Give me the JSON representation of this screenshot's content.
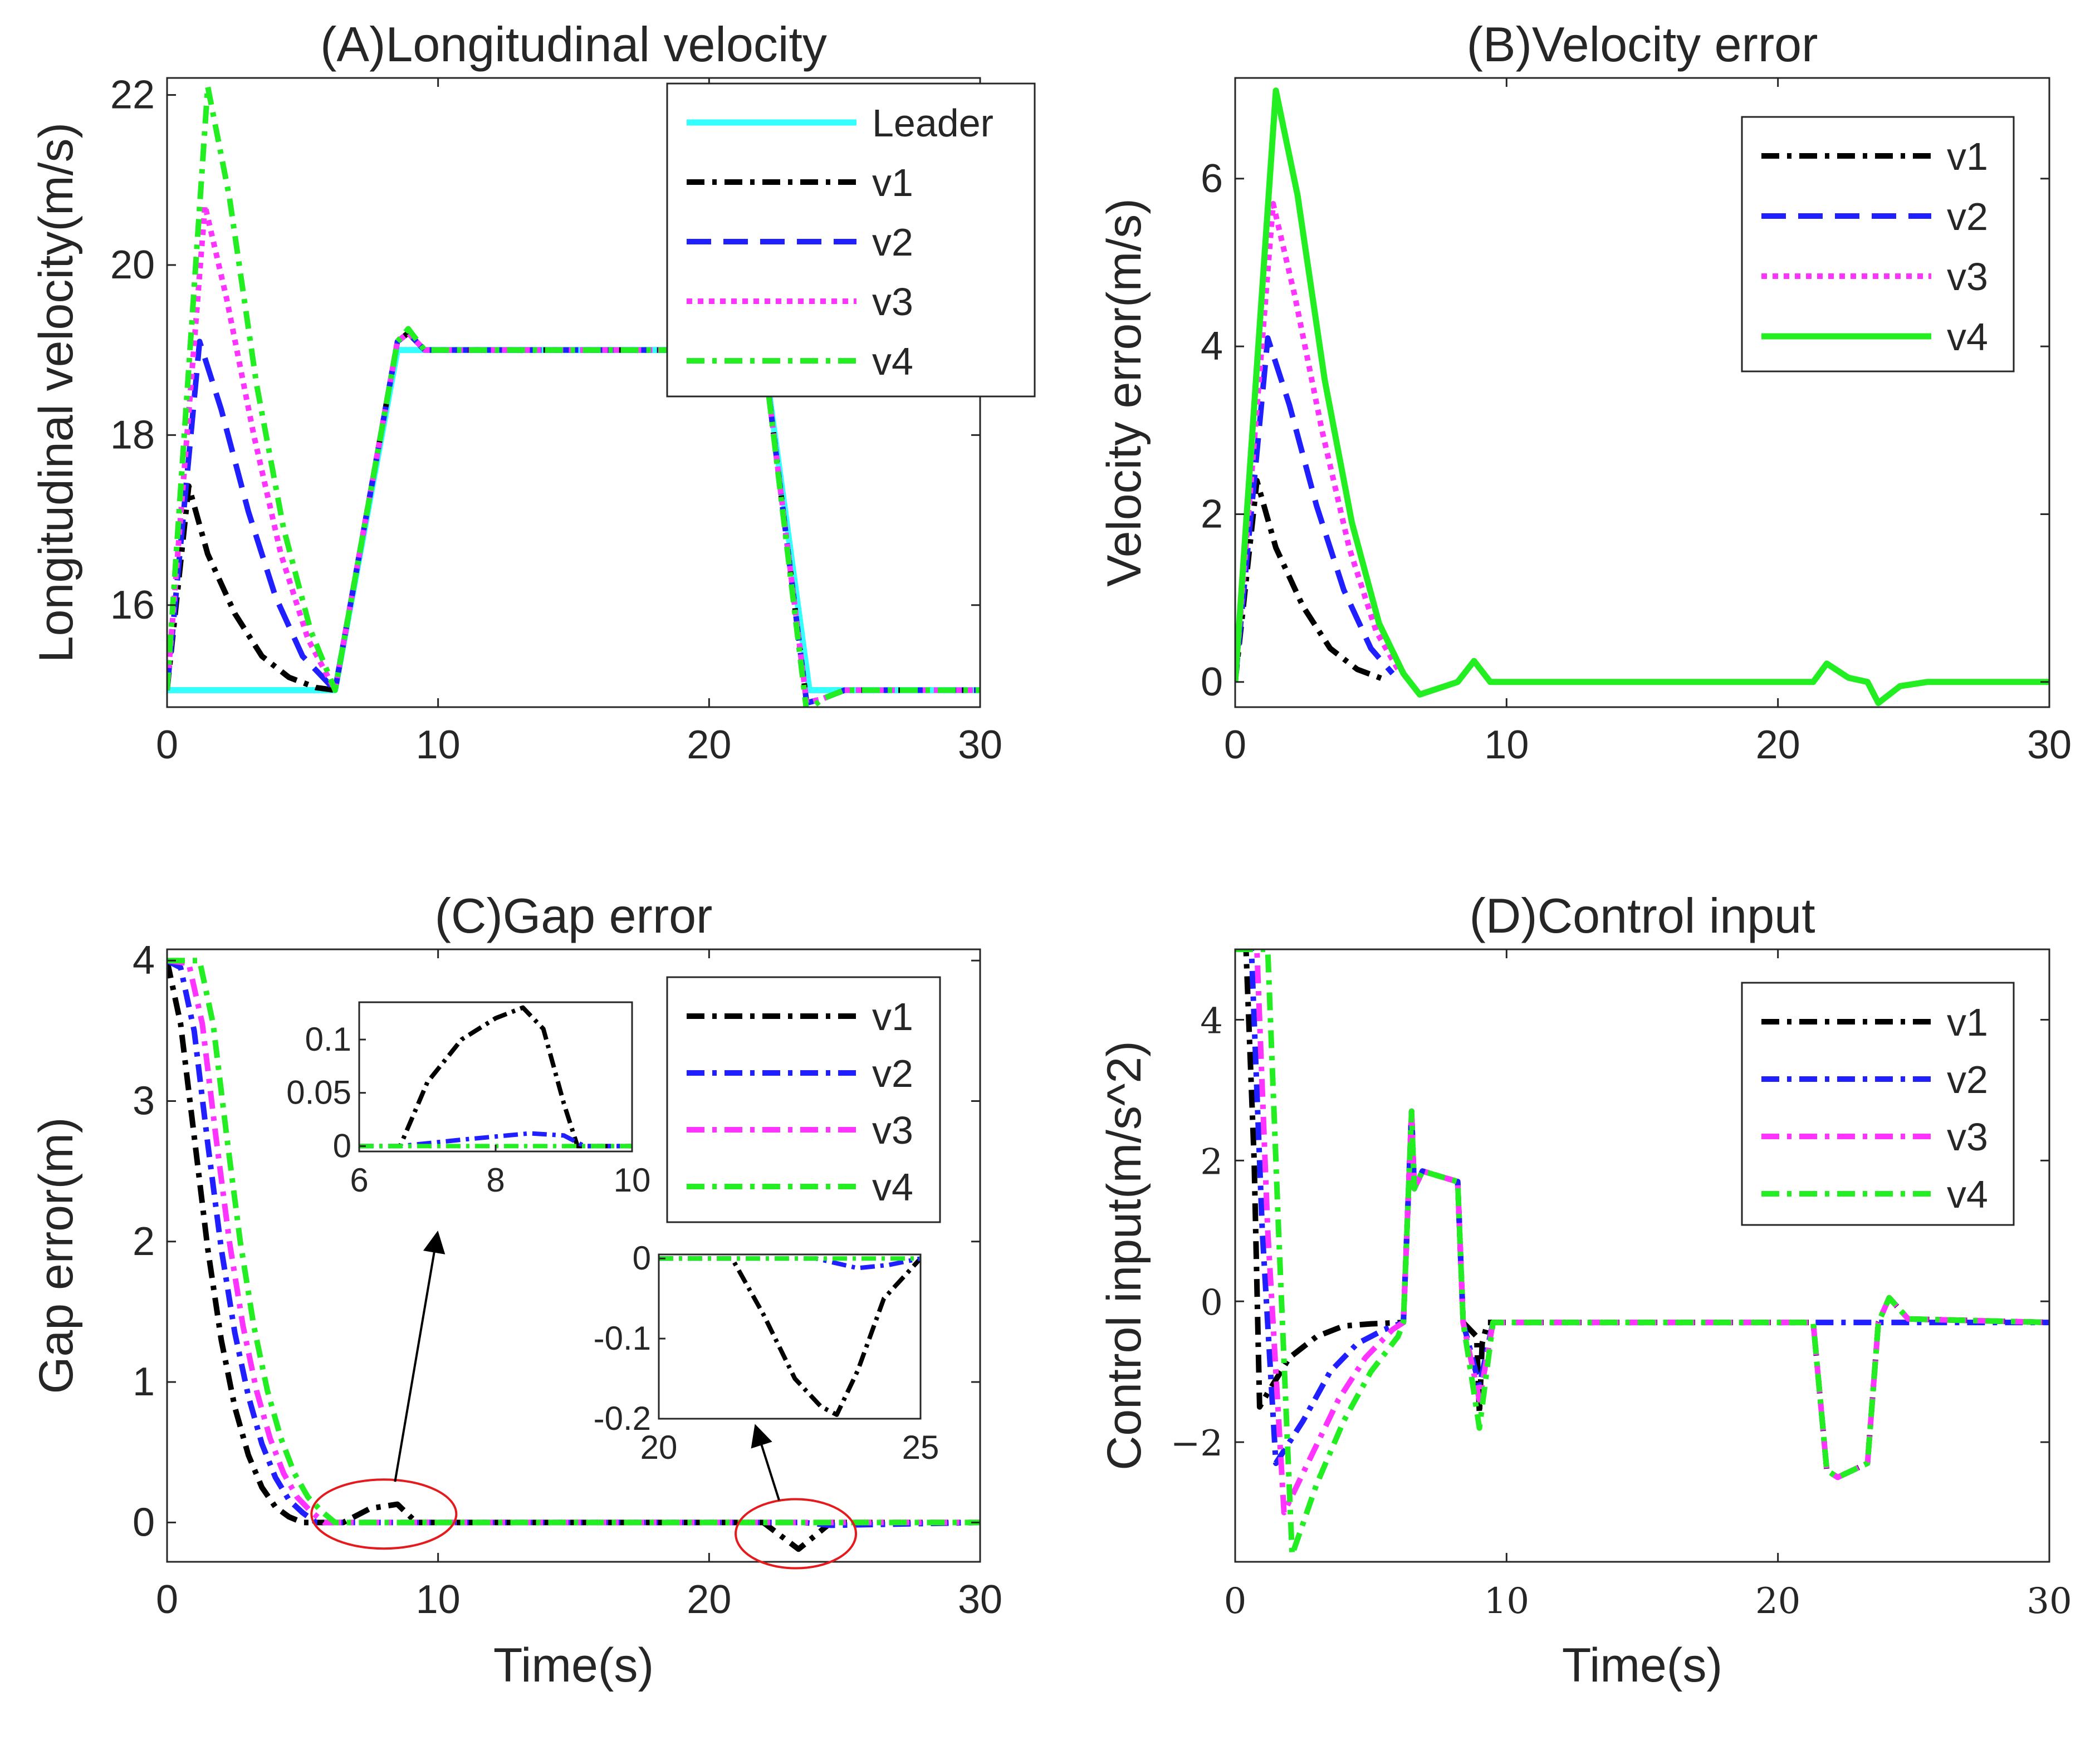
{
  "chart_data": [
    {
      "type": "line",
      "id": "A",
      "title": "(A)Longitudinal velocity",
      "xlabel": "",
      "ylabel": "Longitudinal velocity(m/s)",
      "xlim": [
        0,
        30
      ],
      "ylim": [
        14.8,
        22.2
      ],
      "xticks": [
        0,
        10,
        20,
        30
      ],
      "yticks": [
        16,
        18,
        20,
        22
      ],
      "legend": {
        "position": "top-right",
        "entries": [
          "Leader",
          "v1",
          "v2",
          "v3",
          "v4"
        ]
      },
      "series": [
        {
          "name": "Leader",
          "color": "#33ffff",
          "dash": "solid",
          "x": [
            0,
            6.2,
            8.5,
            22,
            23.7,
            30
          ],
          "y": [
            15,
            15,
            19,
            19,
            15,
            15
          ]
        },
        {
          "name": "v1",
          "color": "#000000",
          "dash": "dashdot",
          "x": [
            0,
            0.8,
            1.5,
            2.5,
            3.5,
            4.5,
            5.5,
            6.2,
            8.5,
            8.9,
            9.5,
            22,
            23.6,
            24.2,
            25,
            30
          ],
          "y": [
            15,
            17.4,
            16.6,
            15.9,
            15.4,
            15.15,
            15.03,
            15,
            19.1,
            19.2,
            19,
            19,
            14.85,
            14.9,
            15,
            15
          ]
        },
        {
          "name": "v2",
          "color": "#1f1fff",
          "dash": "dashed",
          "x": [
            0,
            1.2,
            2,
            3,
            4,
            5,
            6.2,
            8.5,
            8.9,
            9.5,
            22,
            23.6,
            24.2,
            25,
            30
          ],
          "y": [
            15,
            19.1,
            18.3,
            17.1,
            16.1,
            15.4,
            15,
            19.1,
            19.2,
            19,
            19,
            14.85,
            14.9,
            15,
            15
          ]
        },
        {
          "name": "v3",
          "color": "#ff33ff",
          "dash": "dotted",
          "x": [
            0,
            1.4,
            2.2,
            3.2,
            4.2,
            5.2,
            6.2,
            8.5,
            8.9,
            9.5,
            22,
            23.6,
            24.2,
            25,
            30
          ],
          "y": [
            15,
            20.7,
            19.6,
            18,
            16.6,
            15.6,
            15,
            19.1,
            19.2,
            19,
            19,
            14.85,
            14.9,
            15,
            15
          ]
        },
        {
          "name": "v4",
          "color": "#22ee22",
          "dash": "dashdot",
          "x": [
            0,
            1.5,
            2.3,
            3.3,
            4.3,
            5.3,
            6.2,
            8.5,
            8.9,
            9.5,
            22,
            23.6,
            24.2,
            25,
            30
          ],
          "y": [
            15,
            22.1,
            20.8,
            18.6,
            16.9,
            15.7,
            15,
            19.1,
            19.25,
            19,
            19,
            14.75,
            14.9,
            15,
            15
          ]
        }
      ]
    },
    {
      "type": "line",
      "id": "B",
      "title": "(B)Velocity error",
      "xlabel": "",
      "ylabel": "Velocity error(m/s)",
      "xlim": [
        0,
        30
      ],
      "ylim": [
        -0.3,
        7.2
      ],
      "xticks": [
        0,
        10,
        20,
        30
      ],
      "yticks": [
        0,
        2,
        4,
        6
      ],
      "legend": {
        "position": "top-right",
        "entries": [
          "v1",
          "v2",
          "v3",
          "v4"
        ]
      },
      "series": [
        {
          "name": "v1",
          "color": "#000000",
          "dash": "dashdot",
          "x": [
            0,
            0.8,
            1.5,
            2.5,
            3.5,
            4.5,
            5.5
          ],
          "y": [
            0,
            2.4,
            1.6,
            0.9,
            0.4,
            0.15,
            0.03
          ]
        },
        {
          "name": "v2",
          "color": "#1f1fff",
          "dash": "dashed",
          "x": [
            0,
            1.2,
            2,
            3,
            4,
            5,
            5.8
          ],
          "y": [
            0,
            4.1,
            3.3,
            2.1,
            1.1,
            0.4,
            0.1
          ]
        },
        {
          "name": "v3",
          "color": "#ff33ff",
          "dash": "dotted",
          "x": [
            0,
            1.4,
            2.2,
            3.2,
            4.2,
            5.2,
            6
          ],
          "y": [
            0,
            5.7,
            4.6,
            3,
            1.6,
            0.6,
            0.15
          ]
        },
        {
          "name": "v4",
          "color": "#22ee22",
          "dash": "solid",
          "x": [
            0,
            1.5,
            2.3,
            3.3,
            4.3,
            5.3,
            6.2,
            6.8,
            8.2,
            8.8,
            9.4,
            21.3,
            21.8,
            22.6,
            23.3,
            23.7,
            24.5,
            25.5,
            30
          ],
          "y": [
            0,
            7.05,
            5.8,
            3.6,
            1.9,
            0.7,
            0.1,
            -0.15,
            0,
            0.25,
            0,
            0,
            0.22,
            0.05,
            0,
            -0.25,
            -0.05,
            0,
            0
          ]
        }
      ]
    },
    {
      "type": "line",
      "id": "C",
      "title": "(C)Gap error",
      "xlabel": "Time(s)",
      "ylabel": "Gap error(m)",
      "xlim": [
        0,
        30
      ],
      "ylim": [
        -0.28,
        4.08
      ],
      "xticks": [
        0,
        10,
        20,
        30
      ],
      "yticks": [
        0,
        1,
        2,
        3,
        4
      ],
      "legend": {
        "position": "top-right",
        "entries": [
          "v1",
          "v2",
          "v3",
          "v4"
        ]
      },
      "series": [
        {
          "name": "v1",
          "color": "#000000",
          "dash": "dashdot",
          "x": [
            0,
            0.5,
            1,
            1.5,
            2,
            2.5,
            3,
            3.5,
            4,
            4.5,
            5,
            6.5,
            7.5,
            8.5,
            9.2,
            22,
            23.3,
            24.5,
            30
          ],
          "y": [
            4,
            3.55,
            2.75,
            1.95,
            1.3,
            0.82,
            0.48,
            0.25,
            0.11,
            0.04,
            0,
            0,
            0.1,
            0.13,
            0,
            0,
            -0.19,
            0,
            0
          ]
        },
        {
          "name": "v2",
          "color": "#1f1fff",
          "dash": "dashdot",
          "x": [
            0,
            0.5,
            1,
            1.5,
            2,
            2.5,
            3,
            3.5,
            4,
            4.5,
            5,
            5.5,
            23.5,
            24.5,
            30
          ],
          "y": [
            4,
            3.95,
            3.5,
            2.7,
            1.95,
            1.35,
            0.9,
            0.56,
            0.32,
            0.16,
            0.07,
            0,
            0,
            -0.02,
            0
          ]
        },
        {
          "name": "v3",
          "color": "#ff33ff",
          "dash": "dashdot",
          "x": [
            0,
            0.8,
            1.3,
            1.8,
            2.3,
            2.8,
            3.3,
            3.8,
            4.3,
            4.8,
            5.3,
            5.8,
            30
          ],
          "y": [
            4,
            3.98,
            3.55,
            2.75,
            2,
            1.4,
            0.94,
            0.6,
            0.35,
            0.18,
            0.08,
            0,
            0
          ]
        },
        {
          "name": "v4",
          "color": "#22ee22",
          "dash": "dashdot",
          "x": [
            0,
            1.2,
            1.7,
            2.2,
            2.7,
            3.2,
            3.7,
            4.2,
            4.7,
            5.2,
            5.7,
            6.2,
            30
          ],
          "y": [
            4,
            4,
            3.55,
            2.75,
            2,
            1.4,
            0.94,
            0.6,
            0.35,
            0.18,
            0.08,
            0,
            0
          ]
        }
      ],
      "insets": [
        {
          "id": "C-inset-1",
          "xlim": [
            6,
            10
          ],
          "ylim": [
            -0.005,
            0.135
          ],
          "xticks": [
            6,
            8,
            10
          ],
          "yticks": [
            0,
            0.05,
            0.1
          ],
          "ytick_labels": [
            "0",
            "0.05",
            "0.1"
          ],
          "series": [
            {
              "name": "v1",
              "color": "#000000",
              "x": [
                6,
                6.6,
                7,
                7.5,
                8,
                8.4,
                8.7,
                9,
                9.2,
                10
              ],
              "y": [
                0,
                0,
                0.06,
                0.1,
                0.12,
                0.13,
                0.11,
                0.04,
                0,
                0
              ]
            },
            {
              "name": "v2",
              "color": "#1f1fff",
              "x": [
                6,
                6.6,
                7.5,
                8.5,
                9,
                9.3,
                10
              ],
              "y": [
                0,
                0,
                0.006,
                0.012,
                0.01,
                0,
                0
              ]
            },
            {
              "name": "v4",
              "color": "#22ee22",
              "x": [
                6,
                10
              ],
              "y": [
                0,
                0
              ]
            }
          ]
        },
        {
          "id": "C-inset-2",
          "xlim": [
            20,
            25
          ],
          "ylim": [
            -0.2,
            0.005
          ],
          "xticks": [
            20,
            25
          ],
          "yticks": [
            -0.2,
            -0.1,
            0
          ],
          "ytick_labels": [
            "-0.2",
            "-0.1",
            "0"
          ],
          "series": [
            {
              "name": "v1",
              "color": "#000000",
              "x": [
                20,
                21.4,
                22,
                22.6,
                23.1,
                23.4,
                23.8,
                24.3,
                25
              ],
              "y": [
                0,
                0,
                -0.07,
                -0.15,
                -0.185,
                -0.195,
                -0.14,
                -0.05,
                0
              ]
            },
            {
              "name": "v2",
              "color": "#1f1fff",
              "x": [
                20,
                23,
                23.8,
                24.4,
                25
              ],
              "y": [
                0,
                0,
                -0.012,
                -0.008,
                0
              ]
            },
            {
              "name": "v4",
              "color": "#22ee22",
              "x": [
                20,
                25
              ],
              "y": [
                0,
                0
              ]
            }
          ]
        }
      ]
    },
    {
      "type": "line",
      "id": "D",
      "title": "(D)Control input",
      "xlabel": "Time(s)",
      "ylabel": "Control input(m/s^2)",
      "xlim": [
        0,
        30
      ],
      "ylim": [
        -3.7,
        5
      ],
      "xticks": [
        0,
        10,
        20,
        30
      ],
      "yticks": [
        -2,
        0,
        2,
        4
      ],
      "ytick_labels": [
        "−2",
        "0",
        "2",
        "4"
      ],
      "legend": {
        "position": "top-right",
        "entries": [
          "v1",
          "v2",
          "v3",
          "v4"
        ]
      },
      "series": [
        {
          "name": "v1",
          "color": "#000000",
          "dash": "dashdot",
          "x": [
            0,
            0.4,
            0.7,
            0.9,
            1.2,
            2,
            3,
            4,
            5,
            6.2,
            6.5,
            6.6,
            6.9,
            8.2,
            8.4,
            8.9,
            9,
            9.1,
            9.3,
            9.5,
            21.3,
            21.8,
            22.2,
            23.3,
            23.7,
            24.1,
            24.8,
            30
          ],
          "y": [
            5,
            5,
            2,
            -1.5,
            -1.3,
            -0.8,
            -0.5,
            -0.35,
            -0.32,
            -0.3,
            2.7,
            1.6,
            1.85,
            1.7,
            -0.3,
            -0.5,
            -1.6,
            -0.6,
            -0.3,
            -0.3,
            -0.3,
            -2.4,
            -2.5,
            -2.3,
            -0.3,
            0.05,
            -0.25,
            -0.3
          ]
        },
        {
          "name": "v2",
          "color": "#1f1fff",
          "dash": "dashdot",
          "x": [
            0,
            0.6,
            1,
            1.5,
            2.5,
            3.5,
            4.5,
            5.5,
            6.2,
            6.5,
            6.6,
            6.9,
            8.2,
            8.4,
            9,
            9.5,
            30
          ],
          "y": [
            5,
            5,
            1,
            -2.3,
            -1.7,
            -1,
            -0.6,
            -0.4,
            -0.3,
            2.7,
            1.6,
            1.85,
            1.7,
            -0.3,
            -1.2,
            -0.3,
            -0.3
          ]
        },
        {
          "name": "v3",
          "color": "#ff33ff",
          "dash": "dashdot",
          "x": [
            0,
            0.8,
            1.2,
            1.8,
            2.8,
            3.8,
            4.8,
            5.8,
            6.2,
            6.5,
            6.6,
            6.9,
            8.2,
            8.4,
            9,
            9.5,
            21.3,
            21.8,
            22.2,
            23.3,
            23.7,
            24.1,
            24.8,
            30
          ],
          "y": [
            5,
            5,
            1,
            -3,
            -2.2,
            -1.4,
            -0.8,
            -0.4,
            -0.3,
            2.7,
            1.6,
            1.85,
            1.7,
            -0.3,
            -1.4,
            -0.3,
            -0.3,
            -2.4,
            -2.5,
            -2.3,
            -0.3,
            0.05,
            -0.25,
            -0.3
          ]
        },
        {
          "name": "v4",
          "color": "#22ee22",
          "dash": "dashdot",
          "x": [
            0,
            1.2,
            1.6,
            2.1,
            3,
            4,
            5,
            6,
            6.2,
            6.5,
            6.6,
            6.9,
            8.2,
            8.4,
            9,
            9.5,
            21.3,
            21.8,
            22.2,
            23.3,
            23.7,
            24.1,
            24.8,
            30
          ],
          "y": [
            5,
            5,
            1,
            -3.6,
            -2.6,
            -1.7,
            -1,
            -0.5,
            -0.3,
            2.7,
            1.6,
            1.85,
            1.7,
            -0.3,
            -1.8,
            -0.3,
            -0.3,
            -2.4,
            -2.5,
            -2.3,
            -0.3,
            0.05,
            -0.25,
            -0.3
          ]
        }
      ]
    }
  ]
}
